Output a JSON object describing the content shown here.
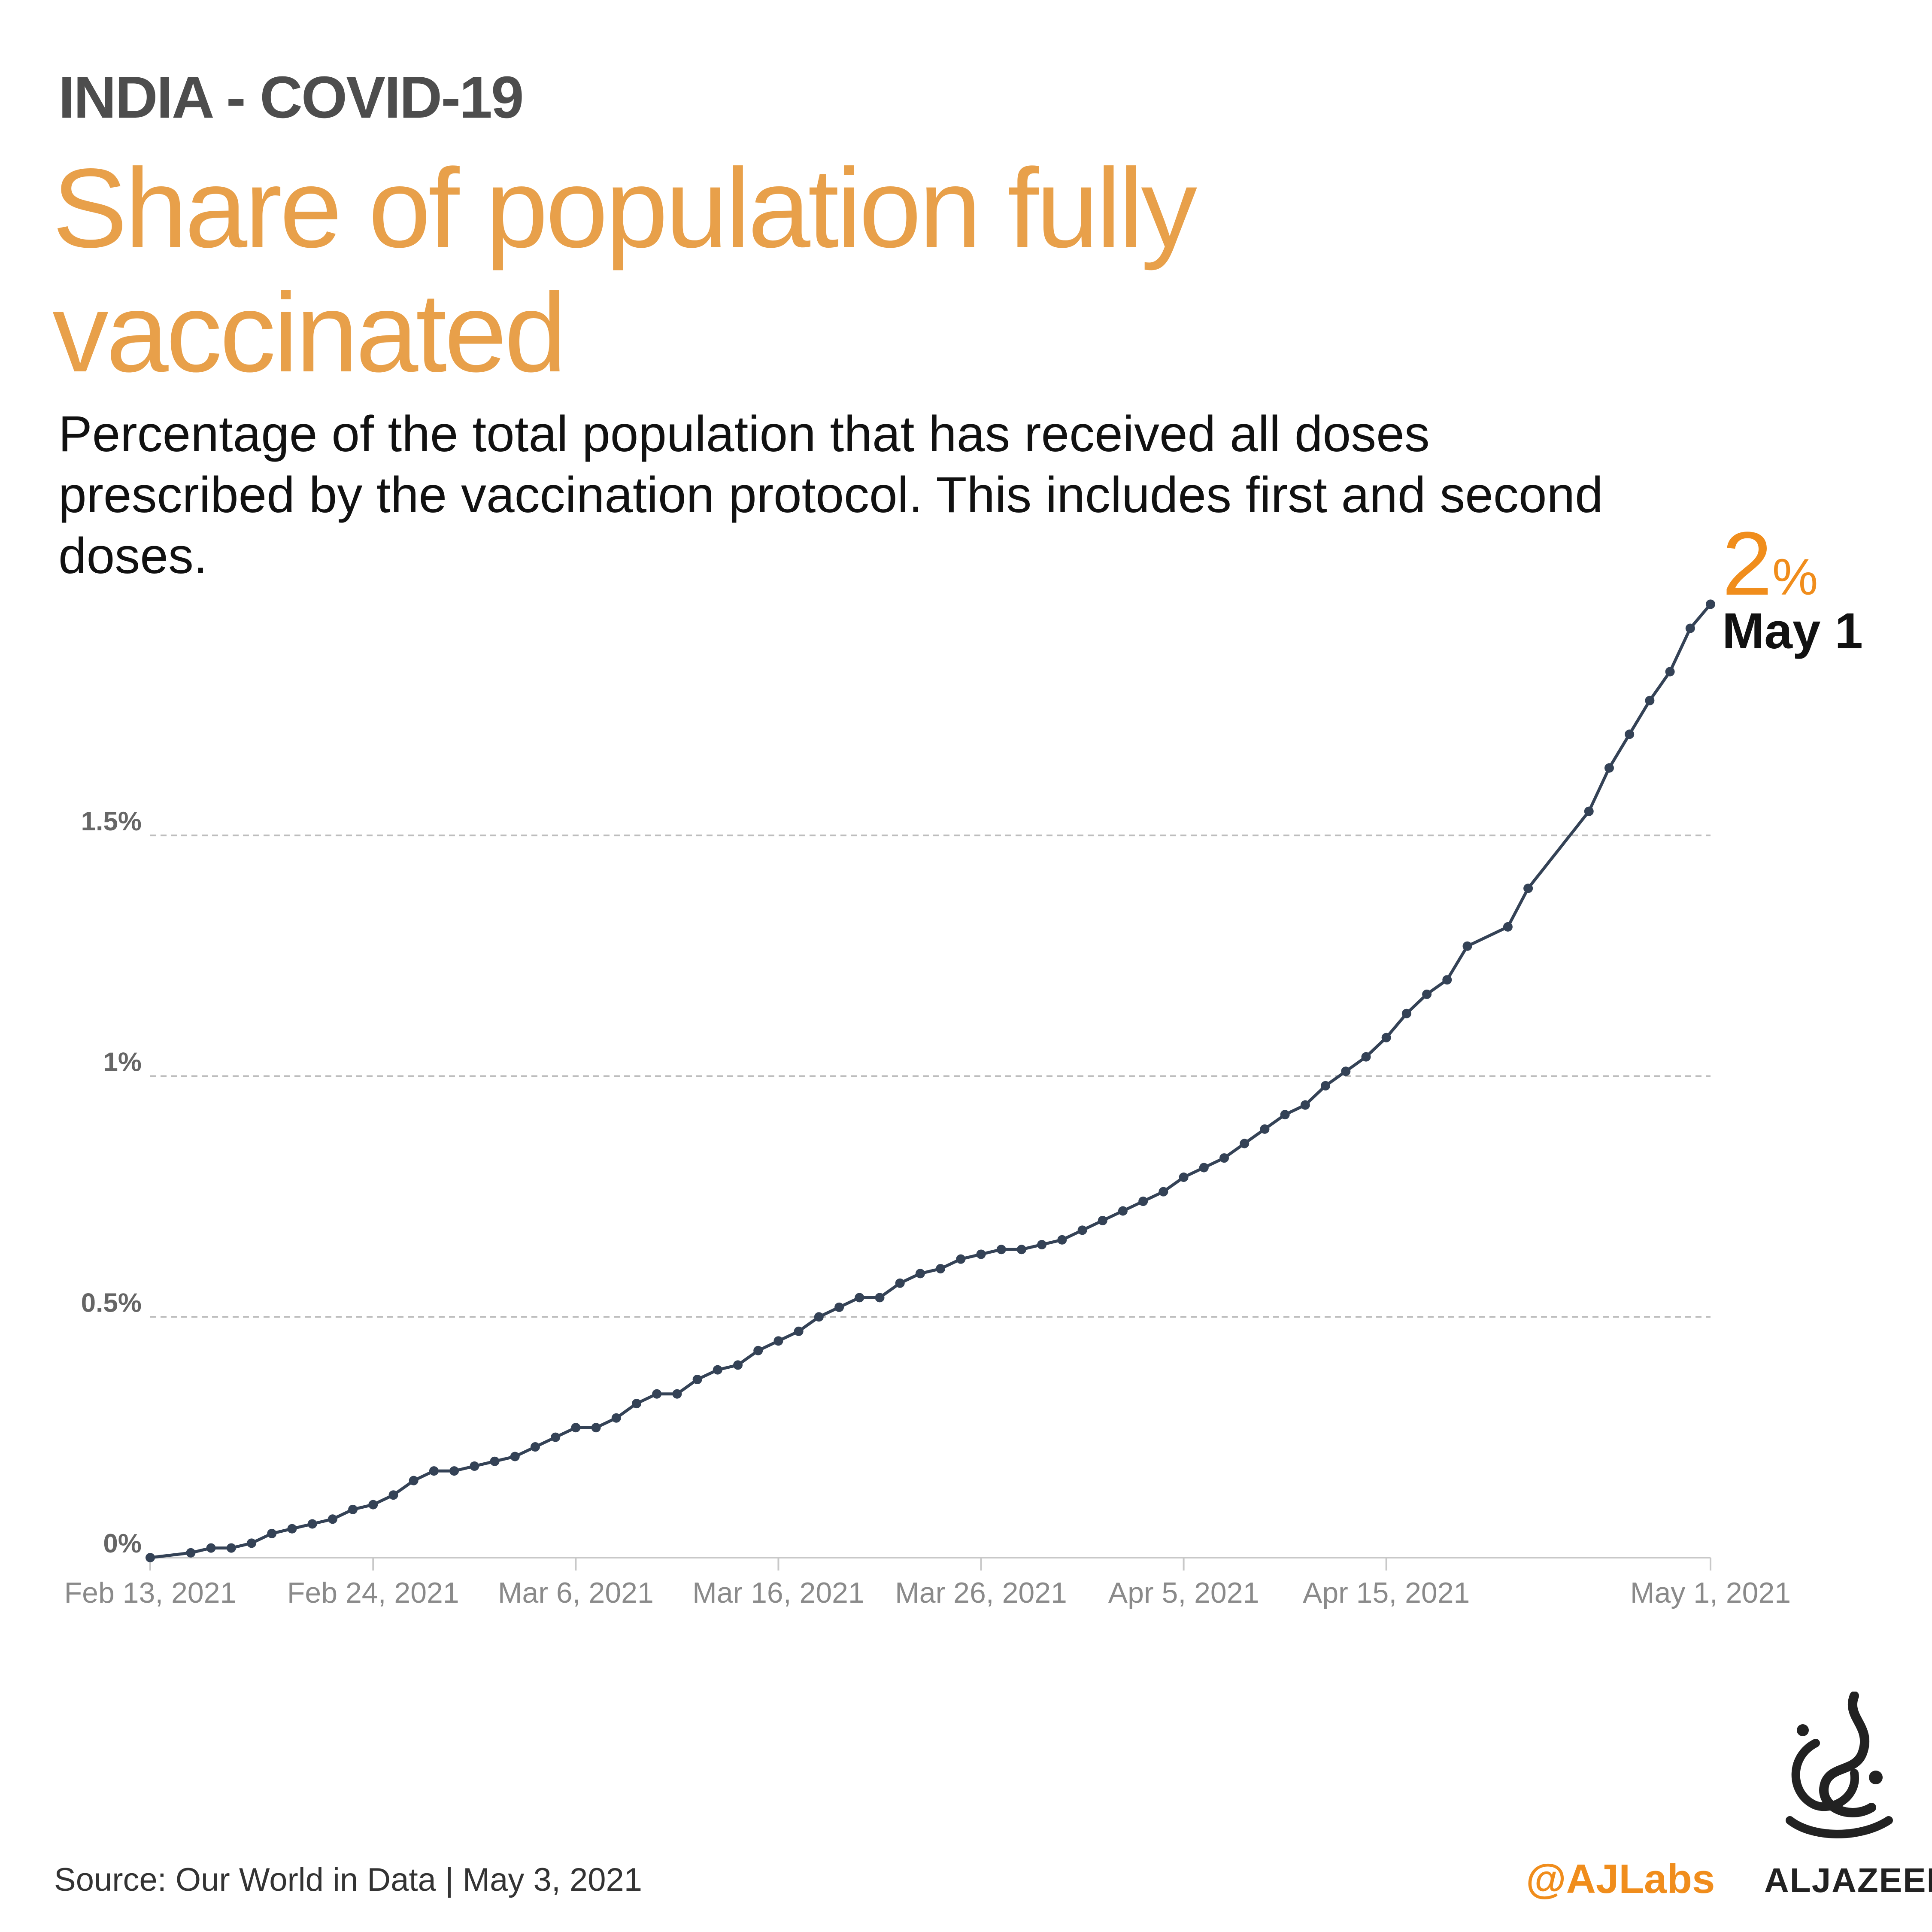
{
  "header": {
    "kicker": "INDIA - COVID-19",
    "title": "Share of population fully vaccinated",
    "subtitle": "Percentage of the total population that has received all doses prescribed by the vaccination protocol. This includes first and second doses."
  },
  "annotation": {
    "value": "2",
    "unit": "%",
    "date": "May 1"
  },
  "footer": {
    "source": "Source: Our World in Data  |  May 3, 2021",
    "handle": "@AJLabs",
    "brand": "ALJAZEERA"
  },
  "colors": {
    "line": "#344256",
    "accent": "#f08d1c",
    "title": "#e8a04a",
    "grid": "#bdbdbd"
  },
  "chart_data": {
    "type": "line",
    "title": "Share of population fully vaccinated",
    "xlabel": "",
    "ylabel": "",
    "x_range": [
      0,
      77
    ],
    "ylim": [
      0,
      2
    ],
    "y_ticks": [
      0,
      0.5,
      1,
      1.5
    ],
    "y_tick_labels": [
      "0%",
      "0.5%",
      "1%",
      "1.5%"
    ],
    "x_ticks": [
      0,
      11,
      21,
      31,
      41,
      51,
      61,
      77
    ],
    "x_tick_labels": [
      "Feb 13, 2021",
      "Feb 24, 2021",
      "Mar 6, 2021",
      "Mar 16, 2021",
      "Mar 26, 2021",
      "Apr 5, 2021",
      "Apr 15, 2021",
      "May 1, 2021"
    ],
    "grid": true,
    "series": [
      {
        "name": "India",
        "x": [
          0,
          2,
          3,
          4,
          5,
          6,
          7,
          8,
          9,
          10,
          11,
          12,
          13,
          14,
          15,
          16,
          17,
          18,
          19,
          20,
          21,
          22,
          23,
          24,
          25,
          26,
          27,
          28,
          29,
          30,
          31,
          32,
          33,
          34,
          35,
          36,
          37,
          38,
          39,
          40,
          41,
          42,
          43,
          44,
          45,
          46,
          47,
          48,
          49,
          50,
          51,
          52,
          53,
          54,
          55,
          56,
          57,
          58,
          59,
          60,
          61,
          62,
          63,
          64,
          65,
          67,
          68,
          71,
          72,
          73,
          74,
          75,
          76,
          77
        ],
        "values": [
          0.0,
          0.01,
          0.02,
          0.02,
          0.03,
          0.05,
          0.06,
          0.07,
          0.08,
          0.1,
          0.11,
          0.13,
          0.16,
          0.18,
          0.18,
          0.19,
          0.2,
          0.21,
          0.23,
          0.25,
          0.27,
          0.27,
          0.29,
          0.32,
          0.34,
          0.34,
          0.37,
          0.39,
          0.4,
          0.43,
          0.45,
          0.47,
          0.5,
          0.52,
          0.54,
          0.54,
          0.57,
          0.59,
          0.6,
          0.62,
          0.63,
          0.64,
          0.64,
          0.65,
          0.66,
          0.68,
          0.7,
          0.72,
          0.74,
          0.76,
          0.79,
          0.81,
          0.83,
          0.86,
          0.89,
          0.92,
          0.94,
          0.98,
          1.01,
          1.04,
          1.08,
          1.13,
          1.17,
          1.2,
          1.27,
          1.31,
          1.39,
          1.55,
          1.64,
          1.71,
          1.78,
          1.84,
          1.93,
          1.98
        ]
      }
    ]
  }
}
